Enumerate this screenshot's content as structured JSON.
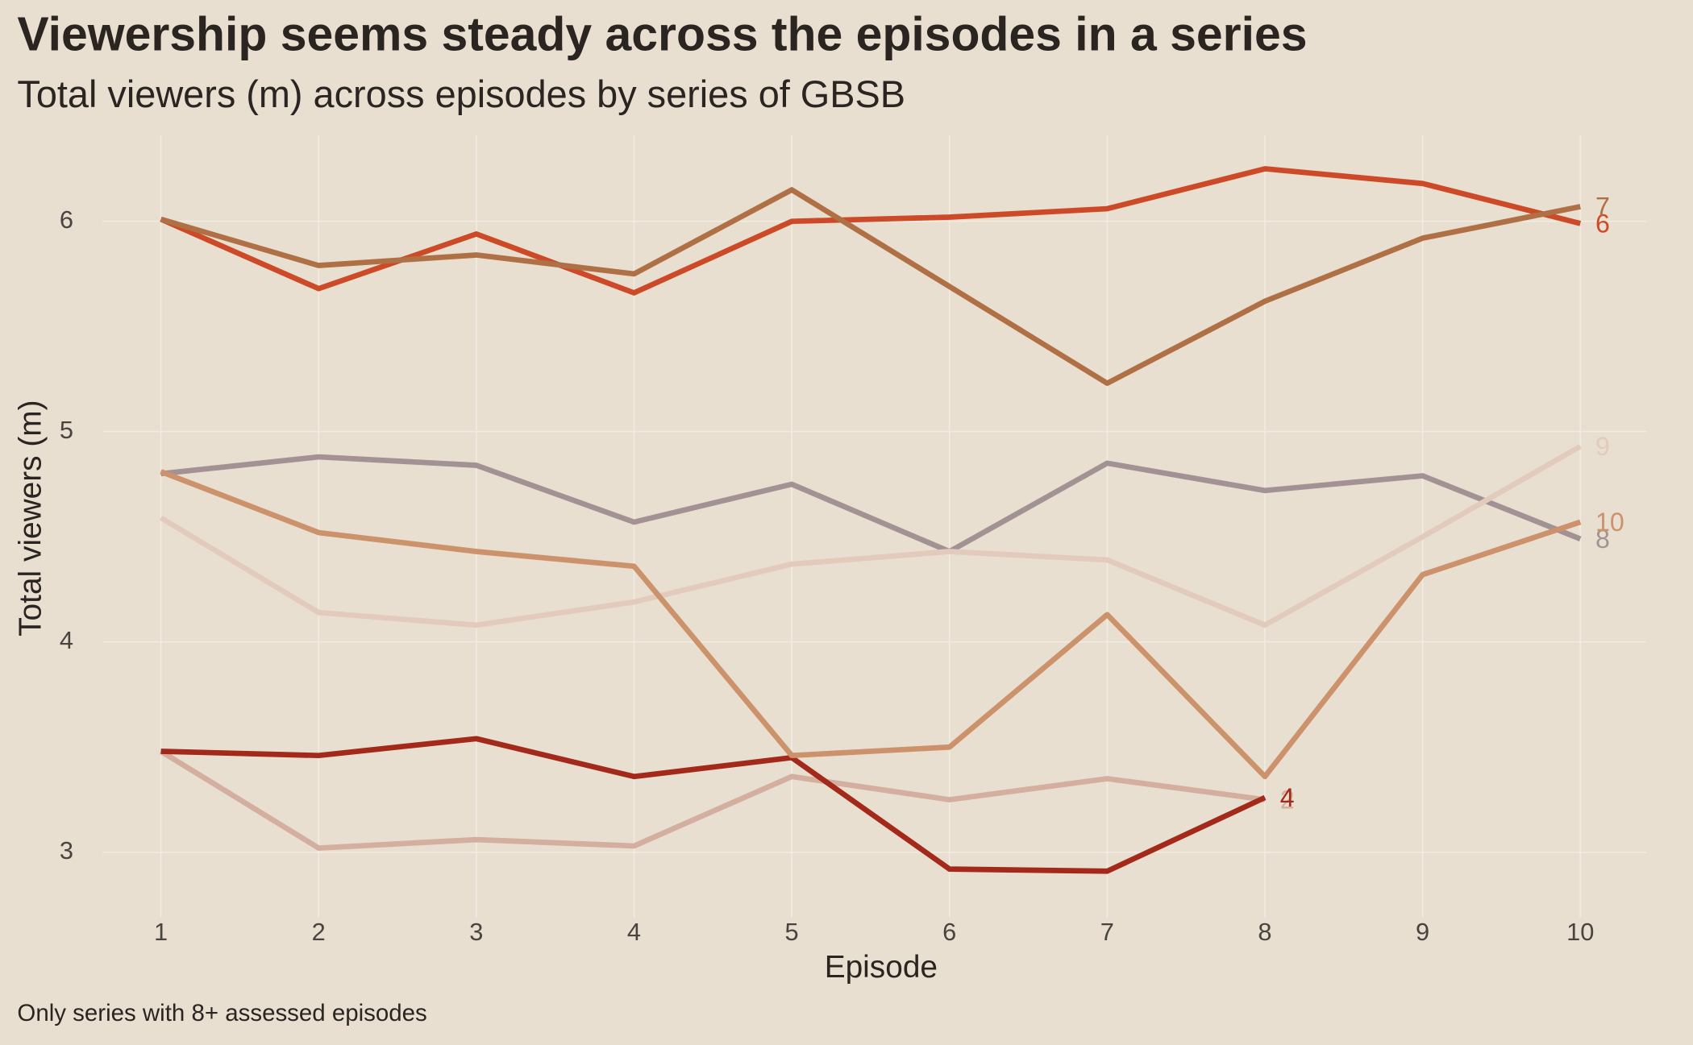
{
  "chart_data": {
    "type": "line",
    "title": "Viewership seems steady across the episodes in a series",
    "subtitle": "Total viewers (m) across episodes by series of GBSB",
    "xlabel": "Episode",
    "ylabel": "Total viewers (m)",
    "caption": "Only series with 8+ assessed episodes",
    "x": [
      1,
      2,
      3,
      4,
      5,
      6,
      7,
      8,
      9,
      10
    ],
    "xlim": [
      0.63,
      10.42
    ],
    "xticks": [
      1,
      2,
      3,
      4,
      5,
      6,
      7,
      8,
      9,
      10
    ],
    "ylim": [
      2.69,
      6.41
    ],
    "yticks": [
      3,
      4,
      5,
      6
    ],
    "grid": true,
    "series": [
      {
        "name": "2",
        "color": "#d4ae9e",
        "values": [
          3.48,
          3.02,
          3.06,
          3.03,
          3.36,
          3.25,
          3.35,
          3.25,
          null,
          null
        ]
      },
      {
        "name": "4",
        "color": "#a3291b",
        "values": [
          3.48,
          3.46,
          3.54,
          3.36,
          3.45,
          2.92,
          2.91,
          3.26,
          null,
          null
        ]
      },
      {
        "name": "6",
        "color": "#cd4a28",
        "values": [
          6.01,
          5.68,
          5.94,
          5.66,
          6.0,
          6.02,
          6.06,
          6.25,
          6.18,
          5.99
        ]
      },
      {
        "name": "7",
        "color": "#b07046",
        "values": [
          6.01,
          5.79,
          5.84,
          5.75,
          6.15,
          5.69,
          5.23,
          5.62,
          5.92,
          6.07
        ]
      },
      {
        "name": "8",
        "color": "#a39294",
        "values": [
          4.8,
          4.88,
          4.84,
          4.57,
          4.75,
          4.43,
          4.85,
          4.72,
          4.79,
          4.49
        ]
      },
      {
        "name": "9",
        "color": "#e2cbbd",
        "values": [
          4.59,
          4.14,
          4.08,
          4.19,
          4.37,
          4.43,
          4.39,
          4.08,
          4.5,
          4.93
        ]
      },
      {
        "name": "10",
        "color": "#cc926c",
        "values": [
          4.81,
          4.52,
          4.43,
          4.36,
          3.46,
          3.5,
          4.13,
          3.36,
          4.32,
          4.57
        ]
      }
    ]
  }
}
